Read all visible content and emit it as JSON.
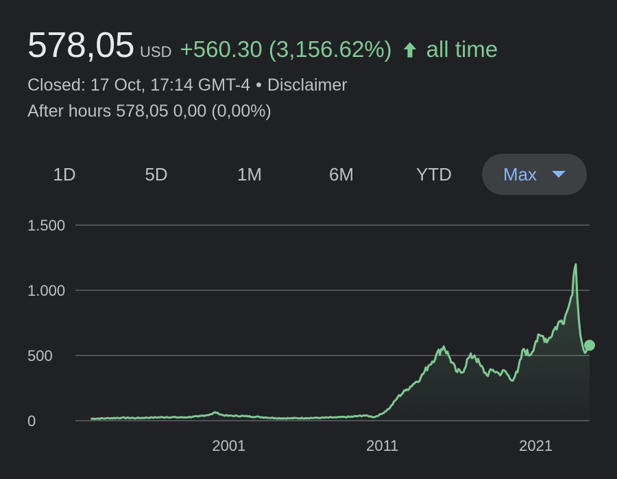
{
  "quote": {
    "price": "578,05",
    "currency": "USD",
    "change": "+560.30 (3,156.62%)",
    "period": "all time",
    "arrow_icon": "arrow-up-icon",
    "positive_color": "#81c995"
  },
  "meta": {
    "closed": "Closed: 17 Oct, 17:14 GMT-4",
    "separator": "•",
    "disclaimer": "Disclaimer",
    "after_hours": "After hours 578,05 0,00 (0,00%)"
  },
  "tabs": [
    {
      "label": "1D"
    },
    {
      "label": "5D"
    },
    {
      "label": "1M"
    },
    {
      "label": "6M"
    },
    {
      "label": "YTD"
    },
    {
      "label": "Max",
      "selected": true,
      "icon": "caret-down-icon"
    }
  ],
  "chart_data": {
    "type": "area",
    "title": "",
    "xlabel": "",
    "ylabel": "",
    "ylim": [
      0,
      1500
    ],
    "xlim": [
      1991.0,
      2024.5
    ],
    "y_ticks": [
      {
        "value": 0,
        "label": "0"
      },
      {
        "value": 500,
        "label": "500"
      },
      {
        "value": 1000,
        "label": "1.000"
      },
      {
        "value": 1500,
        "label": "1.500"
      }
    ],
    "x_ticks": [
      {
        "value": 2001,
        "label": "2001"
      },
      {
        "value": 2011,
        "label": "2011"
      },
      {
        "value": 2021,
        "label": "2021"
      }
    ],
    "grid": true,
    "line_color": "#81c995",
    "series": [
      {
        "x": [
          1992.0,
          1993.0,
          1994.0,
          1995.0,
          1996.0,
          1997.0,
          1998.0,
          1999.0,
          1999.9,
          2000.1,
          2000.6,
          2001.0,
          2002.0,
          2003.0,
          2004.0,
          2005.0,
          2006.0,
          2007.0,
          2008.0,
          2009.0,
          2009.8,
          2010.5,
          2011.0,
          2011.5,
          2012.0,
          2012.5,
          2013.0,
          2013.5,
          2014.0,
          2014.5,
          2015.0,
          2015.4,
          2015.8,
          2016.2,
          2016.6,
          2017.0,
          2017.4,
          2017.8,
          2018.2,
          2018.6,
          2019.0,
          2019.4,
          2019.8,
          2020.2,
          2020.6,
          2021.0,
          2021.4,
          2021.8,
          2022.2,
          2022.6,
          2022.9,
          2023.1,
          2023.3,
          2023.45,
          2023.6,
          2023.8,
          2024.0,
          2024.2,
          2024.5
        ],
        "y": [
          15,
          18,
          22,
          20,
          24,
          27,
          25,
          32,
          50,
          65,
          42,
          38,
          35,
          28,
          20,
          18,
          20,
          22,
          25,
          30,
          40,
          28,
          55,
          100,
          180,
          230,
          280,
          330,
          420,
          500,
          570,
          480,
          380,
          370,
          480,
          500,
          420,
          350,
          390,
          360,
          380,
          310,
          370,
          550,
          500,
          610,
          650,
          620,
          700,
          760,
          800,
          860,
          950,
          1100,
          1200,
          780,
          600,
          520,
          578
        ]
      }
    ],
    "last_value": 578.05
  }
}
